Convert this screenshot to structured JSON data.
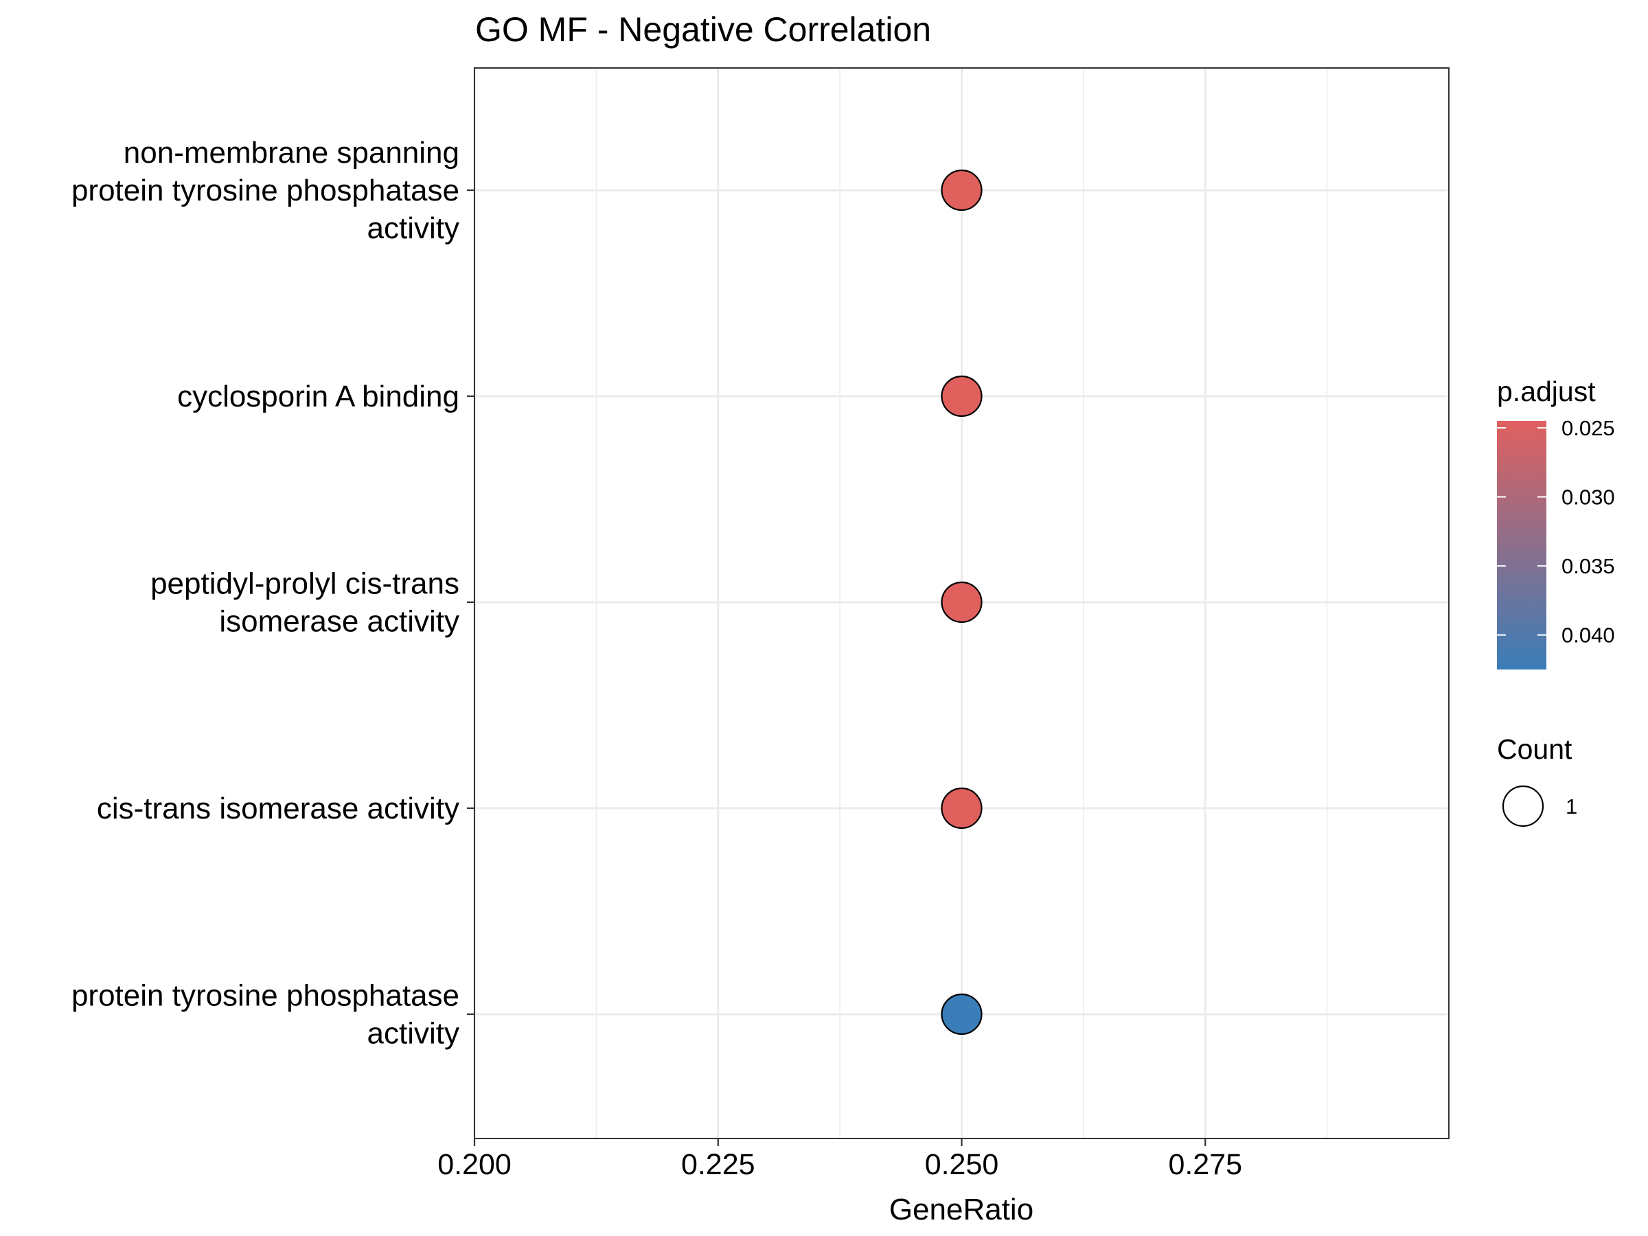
{
  "chart_data": {
    "type": "scatter",
    "title": "GO MF - Negative Correlation",
    "xlabel": "GeneRatio",
    "ylabel": "",
    "xlim": [
      0.2,
      0.3
    ],
    "x_ticks": [
      "0.200",
      "0.225",
      "0.250",
      "0.275"
    ],
    "grid": true,
    "legend_position": "right",
    "categories": [
      "non-membrane spanning protein tyrosine phosphatase activity",
      "cyclosporin A binding",
      "peptidyl-prolyl cis-trans isomerase activity",
      "cis-trans isomerase activity",
      "protein tyrosine phosphatase activity"
    ],
    "category_label_lines": [
      [
        "non-membrane spanning",
        "protein tyrosine phosphatase",
        "activity"
      ],
      [
        "cyclosporin A binding"
      ],
      [
        "peptidyl-prolyl cis-trans",
        "isomerase activity"
      ],
      [
        "cis-trans isomerase activity"
      ],
      [
        "protein tyrosine phosphatase",
        "activity"
      ]
    ],
    "points": [
      {
        "term": "non-membrane spanning protein tyrosine phosphatase activity",
        "gene_ratio": 0.25,
        "count": 1,
        "p_adjust": 0.0245
      },
      {
        "term": "cyclosporin A binding",
        "gene_ratio": 0.25,
        "count": 1,
        "p_adjust": 0.0245
      },
      {
        "term": "peptidyl-prolyl cis-trans isomerase activity",
        "gene_ratio": 0.25,
        "count": 1,
        "p_adjust": 0.0245
      },
      {
        "term": "cis-trans isomerase activity",
        "gene_ratio": 0.25,
        "count": 1,
        "p_adjust": 0.0245
      },
      {
        "term": "protein tyrosine phosphatase activity",
        "gene_ratio": 0.25,
        "count": 1,
        "p_adjust": 0.0425
      }
    ],
    "color_legend": {
      "title": "p.adjust",
      "range": [
        0.0245,
        0.0425
      ],
      "ticks": [
        0.025,
        0.03,
        0.035,
        0.04
      ],
      "tick_labels": [
        "0.025",
        "0.030",
        "0.035",
        "0.040"
      ],
      "low_color": "#E0605E",
      "high_color": "#3A7DB8"
    },
    "size_legend": {
      "title": "Count",
      "values": [
        "1"
      ]
    }
  }
}
